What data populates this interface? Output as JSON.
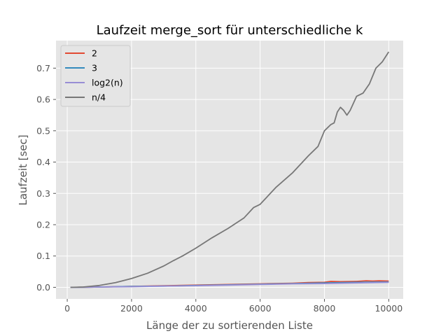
{
  "chart_data": {
    "type": "line",
    "title": "Laufzeit merge_sort für unterschiedliche k",
    "xlabel": "Länge der zu sortierenden Liste",
    "ylabel": "Laufzeit [sec]",
    "xlim": [
      -350,
      10450
    ],
    "ylim": [
      -0.037,
      0.788
    ],
    "xticks": [
      0,
      2000,
      4000,
      6000,
      8000,
      10000
    ],
    "yticks": [
      0.0,
      0.1,
      0.2,
      0.3,
      0.4,
      0.5,
      0.6,
      0.7
    ],
    "xtick_labels": [
      "0",
      "2000",
      "4000",
      "6000",
      "8000",
      "10000"
    ],
    "ytick_labels": [
      "0.0",
      "0.1",
      "0.2",
      "0.3",
      "0.4",
      "0.5",
      "0.6",
      "0.7"
    ],
    "grid": true,
    "legend_position": "top-left",
    "series": [
      {
        "name": "2",
        "color": "#e24a33",
        "x": [
          100,
          1000,
          2000,
          3000,
          4000,
          5000,
          6000,
          7000,
          7500,
          8000,
          8200,
          8500,
          9000,
          9300,
          9500,
          9700,
          10000
        ],
        "y": [
          0.0,
          0.001,
          0.003,
          0.005,
          0.007,
          0.009,
          0.011,
          0.013,
          0.015,
          0.016,
          0.019,
          0.018,
          0.019,
          0.021,
          0.02,
          0.021,
          0.02
        ]
      },
      {
        "name": "3",
        "color": "#348abd",
        "x": [
          100,
          1000,
          2000,
          3000,
          4000,
          5000,
          6000,
          7000,
          8000,
          9000,
          10000
        ],
        "y": [
          0.0,
          0.001,
          0.003,
          0.004,
          0.006,
          0.008,
          0.01,
          0.012,
          0.014,
          0.016,
          0.017
        ]
      },
      {
        "name": "log2(n)",
        "color": "#988ed5",
        "x": [
          100,
          1000,
          2000,
          3000,
          4000,
          5000,
          6000,
          7000,
          8000,
          9000,
          10000
        ],
        "y": [
          0.0,
          0.001,
          0.002,
          0.004,
          0.005,
          0.007,
          0.009,
          0.011,
          0.012,
          0.014,
          0.016
        ]
      },
      {
        "name": "n/4",
        "color": "#777777",
        "x": [
          100,
          500,
          1000,
          1500,
          2000,
          2500,
          3000,
          3300,
          3600,
          4000,
          4500,
          5000,
          5500,
          5800,
          6000,
          6500,
          7000,
          7500,
          7800,
          8000,
          8200,
          8300,
          8400,
          8500,
          8600,
          8700,
          8800,
          9000,
          9200,
          9400,
          9600,
          9800,
          10000
        ],
        "y": [
          0.0,
          0.001,
          0.006,
          0.015,
          0.028,
          0.045,
          0.068,
          0.085,
          0.101,
          0.125,
          0.158,
          0.188,
          0.222,
          0.255,
          0.265,
          0.32,
          0.365,
          0.42,
          0.45,
          0.5,
          0.52,
          0.525,
          0.56,
          0.575,
          0.565,
          0.55,
          0.565,
          0.61,
          0.62,
          0.65,
          0.7,
          0.72,
          0.752
        ]
      }
    ]
  }
}
